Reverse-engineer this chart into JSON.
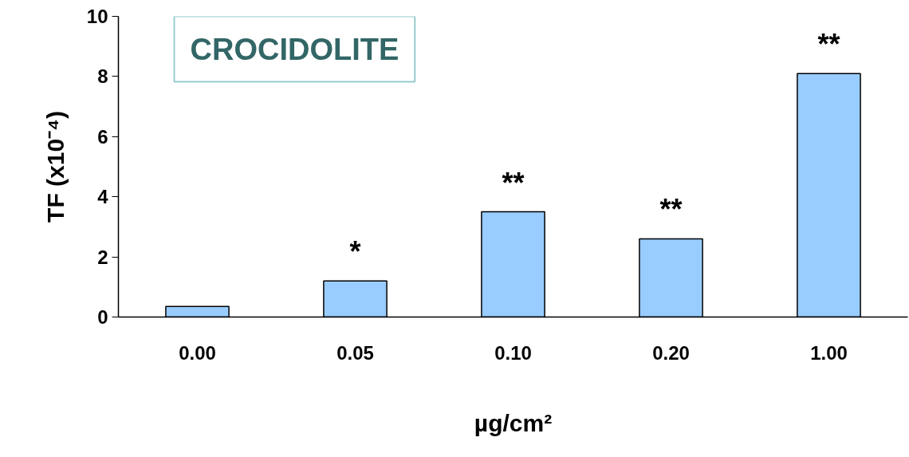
{
  "chart_data": {
    "type": "bar",
    "title": "CROCIDOLITE",
    "xlabel": "µg/cm²",
    "ylabel": "TF (x10⁻⁴)",
    "categories": [
      "0.00",
      "0.05",
      "0.10",
      "0.20",
      "1.00"
    ],
    "values": [
      0.35,
      1.2,
      3.5,
      2.6,
      8.1
    ],
    "color": "#99ccff",
    "ylim": [
      0,
      10
    ],
    "yticks": [
      0,
      2,
      4,
      6,
      8,
      10
    ],
    "grid": false,
    "value_labels": [
      null,
      "*",
      "**",
      "**",
      "**"
    ]
  }
}
